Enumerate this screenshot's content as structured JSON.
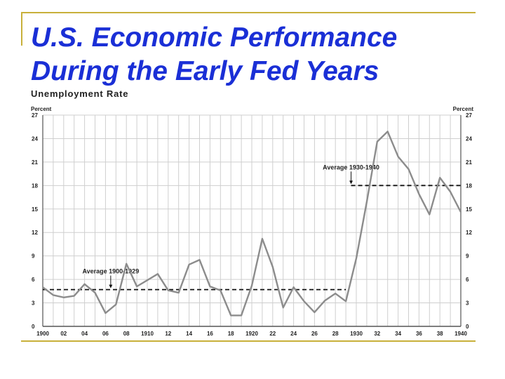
{
  "slide": {
    "title_line1": "U.S. Economic Performance",
    "title_line2": "During the Early Fed Years",
    "accent_color": "#c8b03a",
    "title_color": "#1a2fd6"
  },
  "chart_data": {
    "type": "line",
    "title": "Unemployment Rate",
    "ylabel_left": "Percent",
    "ylabel_right": "Percent",
    "ylim": [
      0,
      27
    ],
    "yticks": [
      0,
      3,
      6,
      9,
      12,
      15,
      18,
      21,
      24,
      27
    ],
    "xlim": [
      1900,
      1940
    ],
    "xticks": [
      {
        "year": 1900,
        "label": "1900"
      },
      {
        "year": 1902,
        "label": "02"
      },
      {
        "year": 1904,
        "label": "04"
      },
      {
        "year": 1906,
        "label": "06"
      },
      {
        "year": 1908,
        "label": "08"
      },
      {
        "year": 1910,
        "label": "1910"
      },
      {
        "year": 1912,
        "label": "12"
      },
      {
        "year": 1914,
        "label": "14"
      },
      {
        "year": 1916,
        "label": "16"
      },
      {
        "year": 1918,
        "label": "18"
      },
      {
        "year": 1920,
        "label": "1920"
      },
      {
        "year": 1922,
        "label": "22"
      },
      {
        "year": 1924,
        "label": "24"
      },
      {
        "year": 1926,
        "label": "26"
      },
      {
        "year": 1928,
        "label": "28"
      },
      {
        "year": 1930,
        "label": "1930"
      },
      {
        "year": 1932,
        "label": "32"
      },
      {
        "year": 1934,
        "label": "34"
      },
      {
        "year": 1936,
        "label": "36"
      },
      {
        "year": 1938,
        "label": "38"
      },
      {
        "year": 1940,
        "label": "1940"
      }
    ],
    "grid": true,
    "series": [
      {
        "color": "#8c8c8c",
        "x": [
          1900,
          1901,
          1902,
          1903,
          1904,
          1905,
          1906,
          1907,
          1908,
          1909,
          1910,
          1911,
          1912,
          1913,
          1914,
          1915,
          1916,
          1917,
          1918,
          1919,
          1920,
          1921,
          1922,
          1923,
          1924,
          1925,
          1926,
          1927,
          1928,
          1929,
          1930,
          1931,
          1932,
          1933,
          1934,
          1935,
          1936,
          1937,
          1938,
          1939,
          1940
        ],
        "y": [
          5.0,
          4.0,
          3.7,
          3.9,
          5.4,
          4.3,
          1.7,
          2.8,
          8.0,
          5.1,
          5.9,
          6.7,
          4.6,
          4.3,
          7.9,
          8.5,
          5.1,
          4.6,
          1.4,
          1.4,
          5.2,
          11.2,
          7.6,
          2.4,
          5.0,
          3.2,
          1.8,
          3.3,
          4.2,
          3.2,
          8.7,
          15.9,
          23.6,
          24.9,
          21.7,
          20.1,
          16.9,
          14.3,
          19.0,
          17.2,
          14.6
        ]
      }
    ],
    "averages": [
      {
        "label": "Average 1900-1929",
        "value": 4.7,
        "from": 1900,
        "to": 1929,
        "arrow_year": 1906.5
      },
      {
        "label": "Average 1930-1940",
        "value": 18.0,
        "from": 1929.5,
        "to": 1940,
        "arrow_year": 1929.5
      }
    ]
  }
}
